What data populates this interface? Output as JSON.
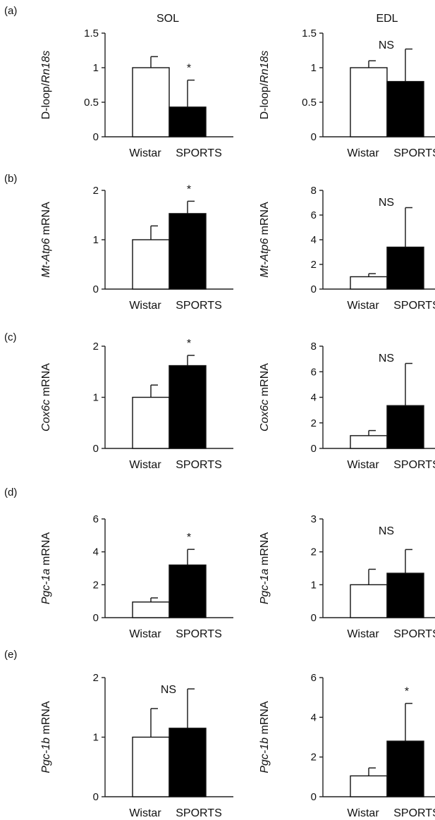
{
  "column_titles": [
    "SOL",
    "EDL"
  ],
  "panel_letters": [
    "(a)",
    "(b)",
    "(c)",
    "(d)",
    "(e)"
  ],
  "colors": {
    "wistar_fill": "#ffffff",
    "sports_fill": "#000000",
    "axis": "#222222"
  },
  "chart_data": [
    {
      "id": "a-sol",
      "type": "bar",
      "row": 0,
      "col": 0,
      "categories": [
        "Wistar",
        "SPORTS"
      ],
      "values": [
        1.0,
        0.43
      ],
      "errors": [
        0.16,
        0.39
      ],
      "ylabel": {
        "prefix": "D-loop/",
        "italic": "Rn18s",
        "suffix": ""
      },
      "ylim": [
        0,
        1.5
      ],
      "yticks": [
        0,
        0.5,
        1,
        1.5
      ],
      "ytick_labels": [
        "0",
        "0.5",
        "1",
        "1.5"
      ],
      "significance": "*",
      "sig_over": 1
    },
    {
      "id": "a-edl",
      "type": "bar",
      "row": 0,
      "col": 1,
      "categories": [
        "Wistar",
        "SPORTS"
      ],
      "values": [
        1.0,
        0.8
      ],
      "errors": [
        0.1,
        0.47
      ],
      "ylabel": {
        "prefix": "D-loop/",
        "italic": "Rn18s",
        "suffix": ""
      },
      "ylim": [
        0,
        1.5
      ],
      "yticks": [
        0,
        0.5,
        1,
        1.5
      ],
      "ytick_labels": [
        "0",
        "0.5",
        "1",
        "1.5"
      ],
      "significance": "NS",
      "sig_over": "center"
    },
    {
      "id": "b-sol",
      "type": "bar",
      "row": 1,
      "col": 0,
      "categories": [
        "Wistar",
        "SPORTS"
      ],
      "values": [
        1.0,
        1.53
      ],
      "errors": [
        0.28,
        0.25
      ],
      "ylabel": {
        "prefix": "",
        "italic": "Mt-Atp6",
        "suffix": " mRNA"
      },
      "ylim": [
        0,
        2
      ],
      "yticks": [
        0,
        1,
        2
      ],
      "ytick_labels": [
        "0",
        "1",
        "2"
      ],
      "significance": "*",
      "sig_over": 1
    },
    {
      "id": "b-edl",
      "type": "bar",
      "row": 1,
      "col": 1,
      "categories": [
        "Wistar",
        "SPORTS"
      ],
      "values": [
        1.0,
        3.4
      ],
      "errors": [
        0.25,
        3.2
      ],
      "ylabel": {
        "prefix": "",
        "italic": "Mt-Atp6",
        "suffix": " mRNA"
      },
      "ylim": [
        0,
        8
      ],
      "yticks": [
        0,
        2,
        4,
        6,
        8
      ],
      "ytick_labels": [
        "0",
        "2",
        "4",
        "6",
        "8"
      ],
      "significance": "NS",
      "sig_over": "center"
    },
    {
      "id": "c-sol",
      "type": "bar",
      "row": 2,
      "col": 0,
      "categories": [
        "Wistar",
        "SPORTS"
      ],
      "values": [
        1.0,
        1.62
      ],
      "errors": [
        0.24,
        0.2
      ],
      "ylabel": {
        "prefix": "",
        "italic": "Cox6c",
        "suffix": " mRNA"
      },
      "ylim": [
        0,
        2
      ],
      "yticks": [
        0,
        1,
        2
      ],
      "ytick_labels": [
        "0",
        "1",
        "2"
      ],
      "significance": "*",
      "sig_over": 1
    },
    {
      "id": "c-edl",
      "type": "bar",
      "row": 2,
      "col": 1,
      "categories": [
        "Wistar",
        "SPORTS"
      ],
      "values": [
        1.0,
        3.35
      ],
      "errors": [
        0.4,
        3.3
      ],
      "ylabel": {
        "prefix": "",
        "italic": "Cox6c",
        "suffix": " mRNA"
      },
      "ylim": [
        0,
        8
      ],
      "yticks": [
        0,
        2,
        4,
        6,
        8
      ],
      "ytick_labels": [
        "0",
        "2",
        "4",
        "6",
        "8"
      ],
      "significance": "NS",
      "sig_over": "center"
    },
    {
      "id": "d-sol",
      "type": "bar",
      "row": 3,
      "col": 0,
      "categories": [
        "Wistar",
        "SPORTS"
      ],
      "values": [
        0.95,
        3.2
      ],
      "errors": [
        0.25,
        0.95
      ],
      "ylabel": {
        "prefix": "",
        "italic": "Pgc-1a",
        "suffix": " mRNA"
      },
      "ylim": [
        0,
        6
      ],
      "yticks": [
        0,
        2,
        4,
        6
      ],
      "ytick_labels": [
        "0",
        "2",
        "4",
        "6"
      ],
      "significance": "*",
      "sig_over": 1
    },
    {
      "id": "d-edl",
      "type": "bar",
      "row": 3,
      "col": 1,
      "categories": [
        "Wistar",
        "SPORTS"
      ],
      "values": [
        1.0,
        1.35
      ],
      "errors": [
        0.47,
        0.72
      ],
      "ylabel": {
        "prefix": "",
        "italic": "Pgc-1a",
        "suffix": " mRNA"
      },
      "ylim": [
        0,
        3
      ],
      "yticks": [
        0,
        1,
        2,
        3
      ],
      "ytick_labels": [
        "0",
        "1",
        "2",
        "3"
      ],
      "significance": "NS",
      "sig_over": "center"
    },
    {
      "id": "e-sol",
      "type": "bar",
      "row": 4,
      "col": 0,
      "categories": [
        "Wistar",
        "SPORTS"
      ],
      "values": [
        1.0,
        1.15
      ],
      "errors": [
        0.48,
        0.66
      ],
      "ylabel": {
        "prefix": "",
        "italic": "Pgc-1b",
        "suffix": " mRNA"
      },
      "ylim": [
        0,
        2
      ],
      "yticks": [
        0,
        1,
        2
      ],
      "ytick_labels": [
        "0",
        "1",
        "2"
      ],
      "significance": "NS",
      "sig_over": "center"
    },
    {
      "id": "e-edl",
      "type": "bar",
      "row": 4,
      "col": 1,
      "categories": [
        "Wistar",
        "SPORTS"
      ],
      "values": [
        1.05,
        2.8
      ],
      "errors": [
        0.4,
        1.9
      ],
      "ylabel": {
        "prefix": "",
        "italic": "Pgc-1b",
        "suffix": " mRNA"
      },
      "ylim": [
        0,
        6
      ],
      "yticks": [
        0,
        2,
        4,
        6
      ],
      "ytick_labels": [
        "0",
        "2",
        "4",
        "6"
      ],
      "significance": "*",
      "sig_over": 1
    }
  ]
}
